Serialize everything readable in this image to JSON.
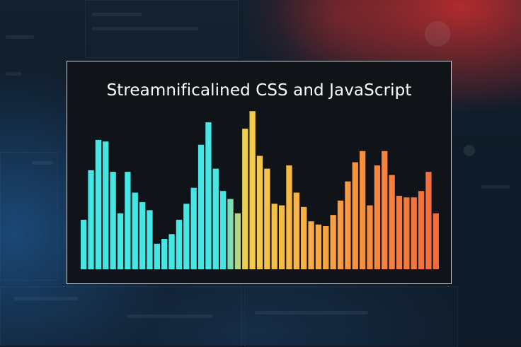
{
  "chart_data": {
    "type": "bar",
    "title": "Streamnificalined CSS and JavaScript",
    "xlabel": "",
    "ylabel": "",
    "ylim": [
      0,
      100
    ],
    "grid": false,
    "legend": "none",
    "values": [
      31,
      62,
      81,
      80,
      61,
      35,
      61,
      48,
      42,
      37,
      16,
      19,
      22,
      31,
      41,
      51,
      78,
      92,
      63,
      49,
      44,
      35,
      88,
      99,
      71,
      63,
      41,
      40,
      65,
      48,
      39,
      30,
      28,
      27,
      34,
      43,
      55,
      67,
      74,
      40,
      65,
      74,
      59,
      46,
      45,
      45,
      49,
      61,
      35
    ],
    "color_stops": [
      "#45e6e4",
      "#45e6e4",
      "#f3ce4a",
      "#f8b143",
      "#f6843d",
      "#f26a3c"
    ]
  }
}
